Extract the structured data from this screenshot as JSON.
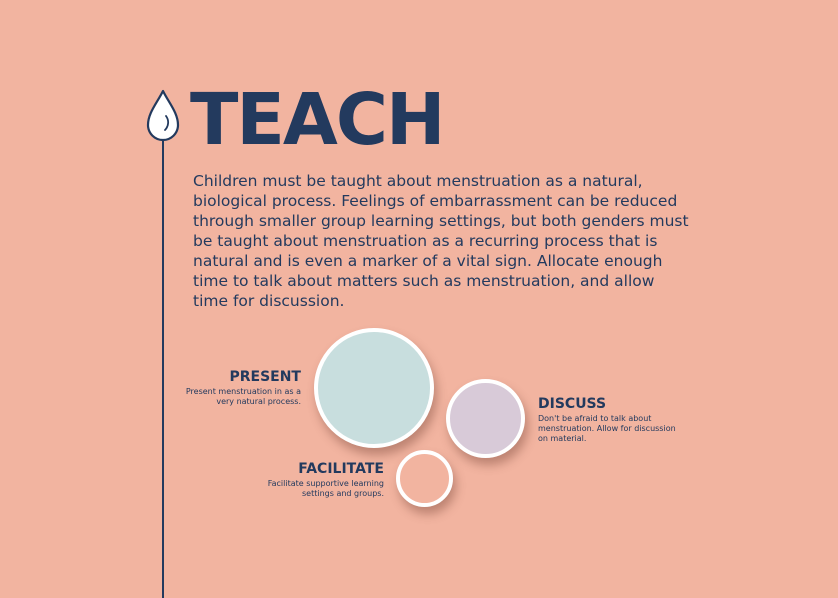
{
  "title": "TEACH",
  "body": "Children must be taught about menstruation as a natural, biological process. Feelings of embarrassment can be reduced through smaller group learning settings, but both genders must be taught about menstruation as a recurring process that is natural and is even a marker of a vital sign. Allocate enough time to talk about matters such as menstruation, and allow time for discussion.",
  "icons": {
    "drop": "water-drop-icon"
  },
  "colors": {
    "background": "#F2B4A0",
    "text": "#233A5E",
    "present_circle": "#C8DEDE",
    "discuss_circle": "#D8CAD8",
    "facilitate_circle": "#F2B4A0",
    "circle_border": "#FFFFFF"
  },
  "items": {
    "present": {
      "heading": "PRESENT",
      "text": "Present menstruation in as a very natural process."
    },
    "discuss": {
      "heading": "DISCUSS",
      "text": "Don't be afraid to talk about menstruation. Allow for discussion on material."
    },
    "facilitate": {
      "heading": "FACILITATE",
      "text": "Facilitate supportive learning settings and groups."
    }
  }
}
